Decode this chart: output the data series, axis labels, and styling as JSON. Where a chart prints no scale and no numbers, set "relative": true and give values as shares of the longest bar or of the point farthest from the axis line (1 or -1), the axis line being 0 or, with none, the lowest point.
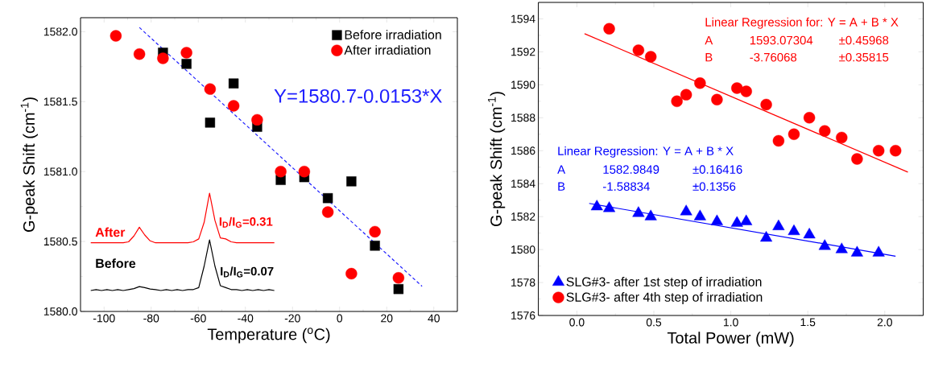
{
  "chart_data": [
    {
      "type": "scatter",
      "xlabel": "Temperature ($^{o}$C)",
      "ylabel": "G-peak Shift (cm$^{-1}$)",
      "xlim": [
        -110,
        50
      ],
      "ylim": [
        1580.0,
        1582.1
      ],
      "xticks": [
        -100,
        -80,
        -60,
        -40,
        -20,
        0,
        20,
        40
      ],
      "yticks": [
        {
          "value": 1580,
          "label": "1580.0"
        },
        {
          "value": 1580.5,
          "label": "1580.5"
        },
        {
          "value": 1581,
          "label": "1581.0"
        },
        {
          "value": 1581.5,
          "label": "1581.5"
        },
        {
          "value": 1582,
          "label": "1582.0"
        }
      ],
      "legend": "top right",
      "annotations": [
        "Y=1580.7-0.0153*X"
      ],
      "x": [
        -95,
        -85,
        -75,
        -65,
        -55,
        -45,
        -35,
        -25,
        -15,
        -5,
        5,
        15,
        25
      ],
      "series": [
        {
          "name": "Before irradiation",
          "color": "#000000",
          "marker": "square",
          "x": [
            -75,
            -65,
            -55,
            -45,
            -35,
            -25,
            -15,
            -5,
            5,
            15,
            25
          ],
          "values": [
            1581.85,
            1581.77,
            1581.35,
            1581.63,
            1581.32,
            1580.94,
            1580.96,
            1580.81,
            1580.93,
            1580.47,
            1580.16
          ]
        },
        {
          "name": "After irradiation",
          "color": "#ff0000",
          "marker": "circle",
          "values": [
            1581.97,
            1581.84,
            1581.81,
            1581.85,
            1581.59,
            1581.47,
            1581.37,
            1581.0,
            1581.0,
            1580.71,
            1580.27,
            1580.57,
            1580.24
          ]
        },
        {
          "type": "line",
          "color": "#2020ff",
          "line_style": "dashed",
          "x": [
            -85,
            35
          ],
          "values": [
            1582.03,
            1580.18
          ]
        }
      ]
    },
    {
      "type": "line",
      "relative": true,
      "annotations": [
        "I$_{D}$/I$_{G}$=0.31",
        "I$_{D}$/I$_{G}$=0.07"
      ],
      "categories": [
        null,
        null,
        null,
        null,
        null,
        null,
        null,
        null,
        null,
        null,
        null,
        null,
        null,
        null,
        null,
        null,
        null,
        null,
        null,
        null,
        null,
        null,
        null,
        null,
        null,
        null,
        null,
        null,
        null,
        null,
        null,
        null,
        null,
        null,
        null
      ],
      "series": [
        {
          "name": "After",
          "color": "#ff0000",
          "values": [
            0.49,
            0.49,
            0.49,
            0.49,
            0.49,
            0.49,
            0.49,
            0.5,
            0.56,
            0.65,
            0.57,
            0.51,
            0.49,
            0.49,
            0.49,
            0.49,
            0.49,
            0.49,
            0.49,
            0.5,
            0.53,
            0.7,
            1.0,
            0.72,
            0.54,
            0.53,
            0.5,
            0.49,
            0.49,
            0.49,
            0.49,
            0.49,
            0.49,
            0.49,
            0.49
          ]
        },
        {
          "name": "Before",
          "color": "#000000",
          "values": [
            0.0,
            0.01,
            0.0,
            0.01,
            0.0,
            0.01,
            0.0,
            0.01,
            0.02,
            0.04,
            0.03,
            0.015,
            0.01,
            0.0,
            0.01,
            0.0,
            0.01,
            0.0,
            0.01,
            0.01,
            0.03,
            0.25,
            0.52,
            0.25,
            0.05,
            0.03,
            0.01,
            0.01,
            0.0,
            0.01,
            0.0,
            0.01,
            0.0,
            0.01,
            0.0
          ]
        }
      ]
    },
    {
      "type": "scatter",
      "xlabel": "Total Power (mW)",
      "ylabel": "G-peak Shift (cm$^{-1}$)",
      "xlim": [
        -0.25,
        2.25
      ],
      "ylim": [
        1576,
        1595
      ],
      "xticks": [
        {
          "value": 0,
          "label": "0.0"
        },
        {
          "value": 0.5,
          "label": "0.5"
        },
        {
          "value": 1,
          "label": "1.0"
        },
        {
          "value": 1.5,
          "label": "1.5"
        },
        {
          "value": 2,
          "label": "2.0"
        }
      ],
      "yticks": [
        1576,
        1578,
        1580,
        1582,
        1584,
        1586,
        1588,
        1590,
        1592,
        1594
      ],
      "legend": "bottom left",
      "annotations": [
        "Linear Regression for: Y = A + B * X",
        "A",
        "1593.07304",
        "±0.45968",
        "B",
        "-3.76068",
        "±0.35815",
        "Linear Regression: Y = A + B * X",
        "A",
        "1582.9849",
        "±0.16416",
        "B",
        "-1.58834",
        "±0.1356"
      ],
      "series": [
        {
          "name": "SLG#3- after 1st step of irradiation",
          "color": "#0000ff",
          "marker": "triangle",
          "x": [
            0.13,
            0.21,
            0.4,
            0.48,
            0.71,
            0.8,
            0.91,
            1.04,
            1.1,
            1.23,
            1.31,
            1.41,
            1.51,
            1.61,
            1.72,
            1.82,
            1.96
          ],
          "values": [
            1582.6,
            1582.5,
            1582.2,
            1582.0,
            1582.3,
            1582.0,
            1581.7,
            1581.6,
            1581.7,
            1580.7,
            1581.4,
            1581.1,
            1580.9,
            1580.2,
            1580.0,
            1579.8,
            1579.8
          ]
        },
        {
          "name": "SLG#3- after 4th step of irradiation",
          "color": "#ff0000",
          "marker": "circle",
          "x": [
            0.21,
            0.4,
            0.48,
            0.65,
            0.71,
            0.8,
            0.91,
            1.04,
            1.1,
            1.23,
            1.31,
            1.41,
            1.51,
            1.61,
            1.72,
            1.82,
            1.96,
            2.07
          ],
          "values": [
            1593.4,
            1592.1,
            1591.7,
            1589.0,
            1589.4,
            1590.1,
            1589.1,
            1589.8,
            1589.6,
            1588.8,
            1586.6,
            1587.0,
            1588.0,
            1587.2,
            1586.8,
            1585.5,
            1586.0,
            1586.0
          ]
        },
        {
          "type": "line",
          "color": "#ff0000",
          "x": [
            0.05,
            2.15
          ],
          "values": [
            1593.1,
            1584.7
          ]
        },
        {
          "type": "line",
          "color": "#0000ff",
          "x": [
            0.08,
            2.07
          ],
          "values": [
            1582.8,
            1579.6
          ]
        }
      ]
    }
  ]
}
